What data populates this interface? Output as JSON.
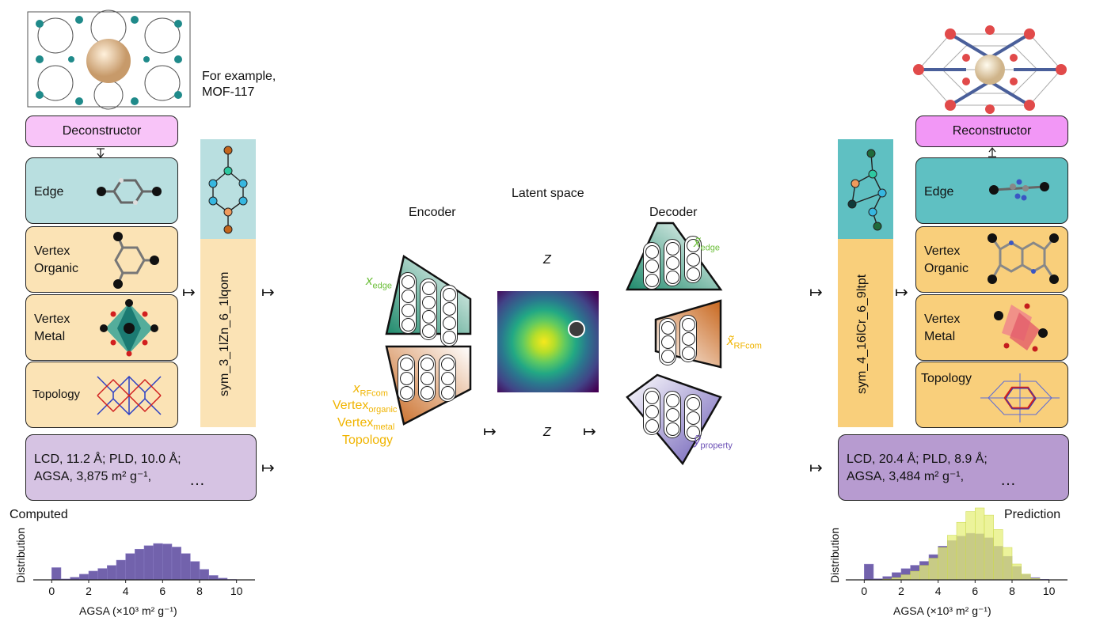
{
  "left": {
    "example_caption_line1": "For example,",
    "example_caption_line2": "MOF-117",
    "deconstructor": "Deconstructor",
    "edge": "Edge",
    "vertex_organic_1": "Vertex",
    "vertex_organic_2": "Organic",
    "vertex_metal_1": "Vertex",
    "vertex_metal_2": "Metal",
    "topology": "Topology",
    "sym_label": "sym_3_1lZn_6_1lqom",
    "props_line1": "LCD, 11.2 Å; PLD, 10.0 Å;",
    "props_line2": "AGSA, 3,875 m² g⁻¹,",
    "ellipsis": "…",
    "hist_title": "Computed",
    "ylabel": "Distribution",
    "xlabel": "AGSA (×10³ m² g⁻¹)"
  },
  "center": {
    "encoder": "Encoder",
    "latent": "Latent space",
    "decoder": "Decoder",
    "z_top": "Z",
    "z_bottom": "Z",
    "x_edge": "x",
    "x_edge_sub": "edge",
    "x_rfcom": "x",
    "x_rfcom_sub": "RFcom",
    "vertex_organic": "Vertex",
    "vertex_organic_sub": "organic",
    "vertex_metal": "Vertex",
    "vertex_metal_sub": "metal",
    "topology": "Topology",
    "xt_edge": "x̃",
    "xt_edge_sub": "edge",
    "xt_rfcom": "x̃",
    "xt_rfcom_sub": "RFcom",
    "yt": "ỹ",
    "yt_sub": "property"
  },
  "right": {
    "reconstructor": "Reconstructor",
    "edge": "Edge",
    "vertex_organic_1": "Vertex",
    "vertex_organic_2": "Organic",
    "vertex_metal_1": "Vertex",
    "vertex_metal_2": "Metal",
    "topology": "Topology",
    "sym_label": "sym_4_16lCr_6_9ltpt",
    "props_line1": "LCD, 20.4 Å; PLD,  8.9 Å;",
    "props_line2": "AGSA, 3,484 m² g⁻¹,",
    "ellipsis": "…",
    "hist_title": "Prediction",
    "ylabel": "Distribution",
    "xlabel": "AGSA (×10³ m² g⁻¹)"
  },
  "colors": {
    "encoder_edge": "#1f8a6c",
    "encoder_rfcom": "#c8671e",
    "decoder_property": "#6a5ab5",
    "hist_computed": "#6a5aa8",
    "hist_predicted": "#e6ef7a"
  },
  "chart_data": [
    {
      "type": "bar",
      "title": "Computed",
      "xlabel": "AGSA (×10³ m² g⁻¹)",
      "ylabel": "Distribution",
      "xticks": [
        "0",
        "2",
        "4",
        "6",
        "8",
        "10"
      ],
      "xlim": [
        -1,
        11
      ],
      "x": [
        0,
        0.5,
        1,
        1.5,
        2,
        2.5,
        3,
        3.5,
        4,
        4.5,
        5,
        5.5,
        6,
        6.5,
        7,
        7.5,
        8,
        8.5,
        9,
        9.5,
        10
      ],
      "series": [
        {
          "name": "",
          "values": [
            0.28,
            0.02,
            0.06,
            0.13,
            0.2,
            0.26,
            0.33,
            0.45,
            0.6,
            0.7,
            0.78,
            0.83,
            0.82,
            0.75,
            0.6,
            0.42,
            0.24,
            0.1,
            0.04,
            0.01,
            0.0
          ]
        }
      ]
    },
    {
      "type": "bar",
      "title": "Prediction",
      "xlabel": "AGSA (×10³ m² g⁻¹)",
      "ylabel": "Distribution",
      "xticks": [
        "0",
        "2",
        "4",
        "6",
        "8",
        "10"
      ],
      "xlim": [
        -1,
        11
      ],
      "x": [
        0,
        0.5,
        1,
        1.5,
        2,
        2.5,
        3,
        3.5,
        4,
        4.5,
        5,
        5.5,
        6,
        6.5,
        7,
        7.5,
        8,
        8.5,
        9,
        9.5,
        10
      ],
      "series": [
        {
          "name": "",
          "values": [
            0.28,
            0.02,
            0.06,
            0.13,
            0.2,
            0.26,
            0.33,
            0.45,
            0.6,
            0.7,
            0.78,
            0.83,
            0.82,
            0.75,
            0.6,
            0.42,
            0.24,
            0.1,
            0.04,
            0.01,
            0.0
          ]
        },
        {
          "name": "",
          "values": [
            0.0,
            0.0,
            0.01,
            0.03,
            0.07,
            0.12,
            0.2,
            0.3,
            0.45,
            0.62,
            0.8,
            0.95,
            1.0,
            0.9,
            0.7,
            0.45,
            0.22,
            0.08,
            0.02,
            0.0,
            0.0
          ]
        }
      ]
    }
  ]
}
